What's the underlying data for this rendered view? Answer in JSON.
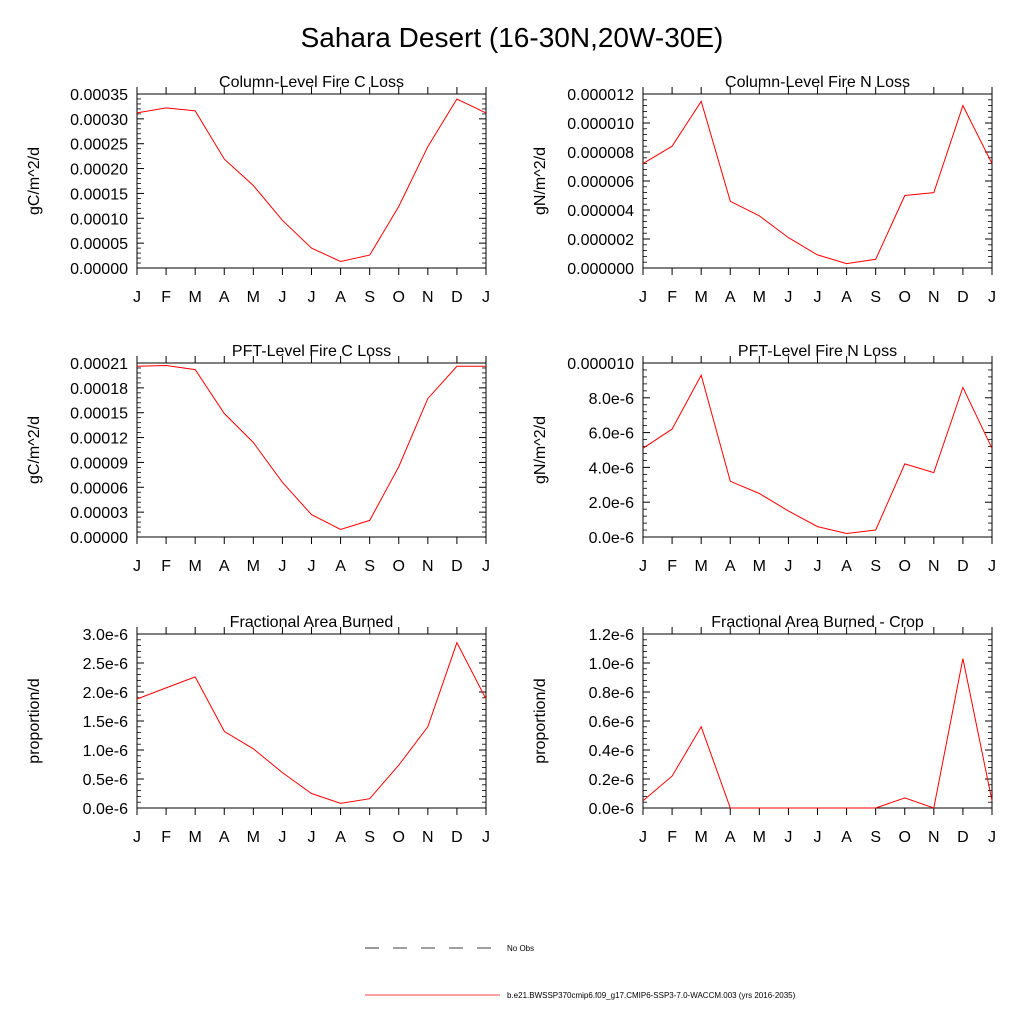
{
  "page_title": "Sahara Desert (16-30N,20W-30E)",
  "line_color": "#ff0000",
  "legend": {
    "entries": [
      {
        "label": "No Obs",
        "style": "dashed",
        "color": "#000000"
      },
      {
        "label": "b.e21.BWSSP370cmip6.f09_g17.CMIP6-SSP3-7.0-WACCM.003 (yrs 2016-2035)",
        "style": "solid",
        "color": "#ff0000"
      }
    ]
  },
  "chart_data": [
    {
      "type": "line",
      "title": "Column-Level Fire C Loss",
      "ylabel": "gC/m^2/d",
      "categories": [
        "J",
        "F",
        "M",
        "A",
        "M",
        "J",
        "J",
        "A",
        "S",
        "O",
        "N",
        "D",
        "J"
      ],
      "ylim": [
        0,
        0.00035
      ],
      "yticks": [
        "0.00000",
        "0.00005",
        "0.00010",
        "0.00015",
        "0.00020",
        "0.00025",
        "0.00030",
        "0.00035"
      ],
      "series": [
        {
          "values": [
            0.000312,
            0.000322,
            0.000316,
            0.000219,
            0.000166,
            9.6e-05,
            4e-05,
            1.3e-05,
            2.6e-05,
            0.000124,
            0.000244,
            0.00034,
            0.000312
          ]
        }
      ]
    },
    {
      "type": "line",
      "title": "Column-Level Fire N Loss",
      "ylabel": "gN/m^2/d",
      "categories": [
        "J",
        "F",
        "M",
        "A",
        "M",
        "J",
        "J",
        "A",
        "S",
        "O",
        "N",
        "D",
        "J"
      ],
      "ylim": [
        0,
        1.2e-05
      ],
      "yticks": [
        "0.000000",
        "0.000002",
        "0.000004",
        "0.000006",
        "0.000008",
        "0.000010",
        "0.000012"
      ],
      "series": [
        {
          "values": [
            7.2e-06,
            8.4e-06,
            1.15e-05,
            4.6e-06,
            3.6e-06,
            2.1e-06,
            9e-07,
            3e-07,
            6e-07,
            5e-06,
            5.2e-06,
            1.12e-05,
            7.2e-06
          ]
        }
      ]
    },
    {
      "type": "line",
      "title": "PFT-Level Fire C Loss",
      "ylabel": "gC/m^2/d",
      "categories": [
        "J",
        "F",
        "M",
        "A",
        "M",
        "J",
        "J",
        "A",
        "S",
        "O",
        "N",
        "D",
        "J"
      ],
      "ylim": [
        0,
        0.00021
      ],
      "yticks": [
        "0.00000",
        "0.00003",
        "0.00006",
        "0.00009",
        "0.00012",
        "0.00015",
        "0.00018",
        "0.00021"
      ],
      "series": [
        {
          "values": [
            0.000206,
            0.000207,
            0.000202,
            0.000149,
            0.000114,
            6.6e-05,
            2.7e-05,
            9e-06,
            2e-05,
            8.5e-05,
            0.000167,
            0.000206,
            0.000206
          ]
        }
      ]
    },
    {
      "type": "line",
      "title": "PFT-Level Fire N Loss",
      "ylabel": "gN/m^2/d",
      "categories": [
        "J",
        "F",
        "M",
        "A",
        "M",
        "J",
        "J",
        "A",
        "S",
        "O",
        "N",
        "D",
        "J"
      ],
      "ylim": [
        0,
        1e-05
      ],
      "yticks": [
        "0.0e-6",
        "2.0e-6",
        "4.0e-6",
        "6.0e-6",
        "8.0e-6",
        "0.000010"
      ],
      "series": [
        {
          "values": [
            5.1e-06,
            6.2e-06,
            9.3e-06,
            3.2e-06,
            2.5e-06,
            1.5e-06,
            6e-07,
            2e-07,
            4e-07,
            4.2e-06,
            3.7e-06,
            8.6e-06,
            5.1e-06
          ]
        }
      ]
    },
    {
      "type": "line",
      "title": "Fractional Area Burned",
      "ylabel": "proportion/d",
      "categories": [
        "J",
        "F",
        "M",
        "A",
        "M",
        "J",
        "J",
        "A",
        "S",
        "O",
        "N",
        "D",
        "J"
      ],
      "ylim": [
        0,
        3e-06
      ],
      "yticks": [
        "0.0e-6",
        "0.5e-6",
        "1.0e-6",
        "1.5e-6",
        "2.0e-6",
        "2.5e-6",
        "3.0e-6"
      ],
      "series": [
        {
          "values": [
            1.88e-06,
            2.07e-06,
            2.26e-06,
            1.32e-06,
            1.02e-06,
            6.1e-07,
            2.5e-07,
            8e-08,
            1.6e-07,
            7.4e-07,
            1.4e-06,
            2.85e-06,
            1.88e-06
          ]
        }
      ]
    },
    {
      "type": "line",
      "title": "Fractional Area Burned - Crop",
      "ylabel": "proportion/d",
      "categories": [
        "J",
        "F",
        "M",
        "A",
        "M",
        "J",
        "J",
        "A",
        "S",
        "O",
        "N",
        "D",
        "J"
      ],
      "ylim": [
        0,
        1.2e-06
      ],
      "yticks": [
        "0.0e-6",
        "0.2e-6",
        "0.4e-6",
        "0.6e-6",
        "0.8e-6",
        "1.0e-6",
        "1.2e-6"
      ],
      "series": [
        {
          "values": [
            5e-08,
            2.2e-07,
            5.6e-07,
            0.0,
            0.0,
            0.0,
            0.0,
            0.0,
            0.0,
            7e-08,
            0.0,
            1.03e-06,
            5e-08
          ]
        }
      ]
    }
  ]
}
